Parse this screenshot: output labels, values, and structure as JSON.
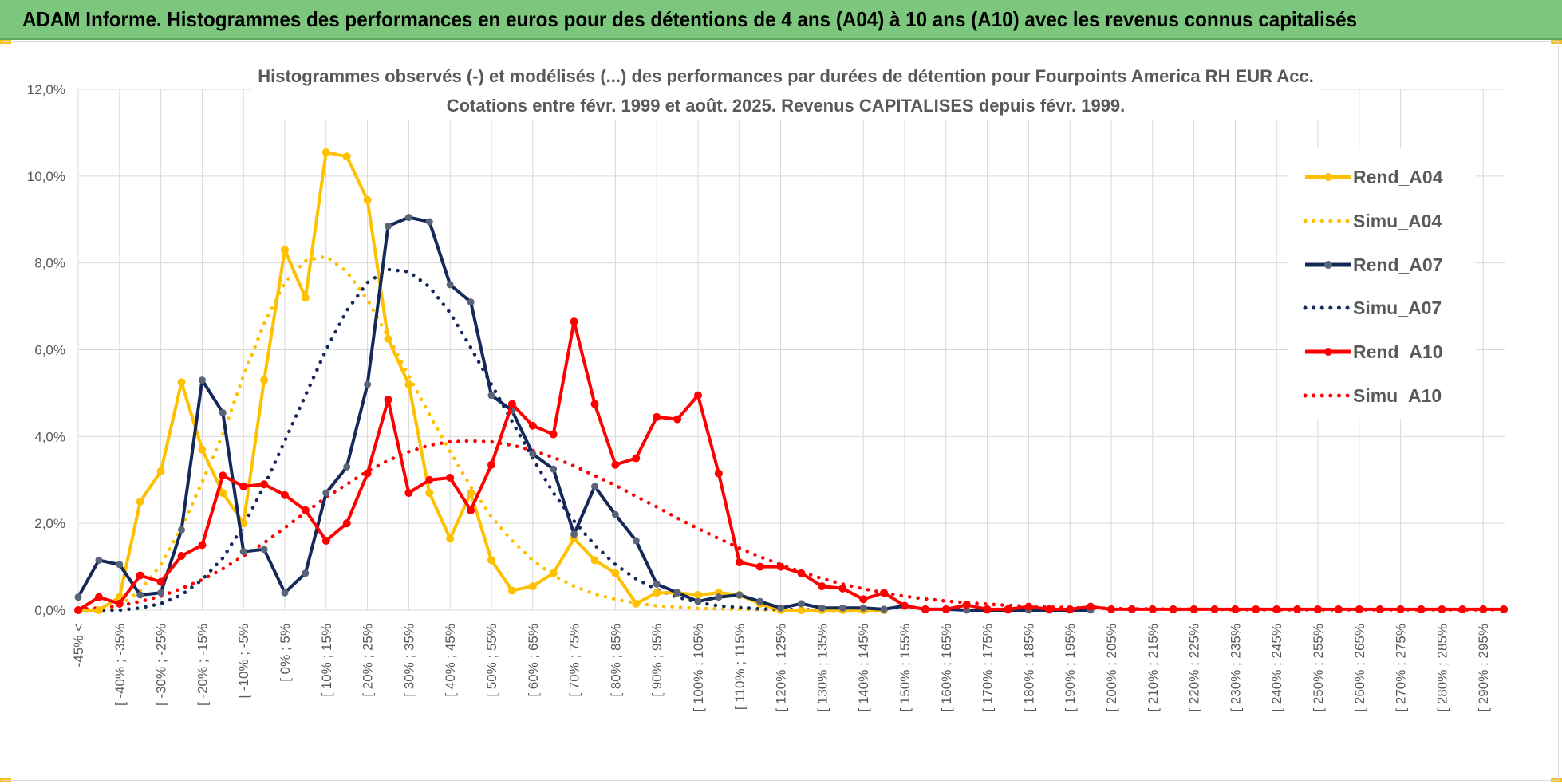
{
  "header": {
    "banner_title": "ADAM Informe. Histogrammes des performances en euros pour des détentions de 4 ans (A04) à 10 ans (A10) avec les revenus connus capitalisés",
    "banner_color": "#7dc67d",
    "accent_color": "#f4c20d"
  },
  "chart_data": {
    "type": "line",
    "title": "Histogrammes observés (-) et modélisés (...) des performances par durées de détention pour Fourpoints America RH EUR Acc.",
    "subtitle": "Cotations entre févr. 1999 et août. 2025. Revenus CAPITALISES depuis févr. 1999.",
    "xlabel": "",
    "ylabel": "",
    "ylim": [
      0,
      12
    ],
    "y_ticks": [
      "0,0%",
      "2,0%",
      "4,0%",
      "6,0%",
      "8,0%",
      "10,0%",
      "12,0%"
    ],
    "grid": true,
    "legend_position": "right",
    "x_tick_labels": [
      "-45% <",
      "[ -40% ; -35%",
      "[ -30% ; -25%",
      "[ -20% ; -15%",
      "[ -10% ; -5%",
      "[ 0% ; 5%",
      "[ 10% ; 15%",
      "[ 20% ; 25%",
      "[ 30% ; 35%",
      "[ 40% ; 45%",
      "[ 50% ; 55%",
      "[ 60% ; 65%",
      "[ 70% ; 75%",
      "[ 80% ; 85%",
      "[ 90% ; 95%",
      "[ 100% ; 105%",
      "[ 110% ; 115%",
      "[ 120% ; 125%",
      "[ 130% ; 135%",
      "[ 140% ; 145%",
      "[ 150% ; 155%",
      "[ 160% ; 165%",
      "[ 170% ; 175%",
      "[ 180% ; 185%",
      "[ 190% ; 195%",
      "[ 200% ; 205%",
      "[ 210% ; 215%",
      "[ 220% ; 225%",
      "[ 230% ; 235%",
      "[ 240% ; 245%",
      "[ 250% ; 255%",
      "[ 260% ; 265%",
      "[ 270% ; 275%",
      "[ 280% ; 285%",
      "[ 290% ; 295%"
    ],
    "series": [
      {
        "name": "Rend_A04",
        "color": "#ffc000",
        "style": "solid",
        "values": [
          0,
          0,
          0.3,
          2.5,
          3.2,
          5.25,
          3.7,
          2.7,
          2.0,
          5.3,
          8.3,
          7.2,
          10.55,
          10.45,
          9.45,
          6.25,
          5.2,
          2.7,
          1.65,
          2.7,
          1.15,
          0.45,
          0.55,
          0.85,
          1.65,
          1.15,
          0.85,
          0.15,
          0.4,
          0.4,
          0.35,
          0.4,
          0.35,
          0.15,
          0,
          0,
          0,
          0,
          0,
          0
        ]
      },
      {
        "name": "Simu_A04",
        "color": "#ffc000",
        "style": "dotted",
        "values": [
          0,
          0,
          0.1,
          0.45,
          1.05,
          1.9,
          2.95,
          4.05,
          5.4,
          6.6,
          7.55,
          8.05,
          8.15,
          7.8,
          7.15,
          6.3,
          5.4,
          4.5,
          3.65,
          2.85,
          2.15,
          1.6,
          1.15,
          0.8,
          0.55,
          0.37,
          0.25,
          0.16,
          0.1,
          0.07,
          0.04,
          0.03,
          0.02,
          0.01,
          0,
          0,
          0,
          0,
          0,
          0
        ]
      },
      {
        "name": "Rend_A07",
        "color": "#14285a",
        "style": "solid",
        "values": [
          0.3,
          1.15,
          1.05,
          0.35,
          0.4,
          1.85,
          5.3,
          4.55,
          1.35,
          1.4,
          0.4,
          0.85,
          2.7,
          3.3,
          5.2,
          8.85,
          9.05,
          8.95,
          7.5,
          7.1,
          4.95,
          4.6,
          3.6,
          3.25,
          1.75,
          2.85,
          2.2,
          1.6,
          0.6,
          0.4,
          0.2,
          0.3,
          0.35,
          0.2,
          0.05,
          0.15,
          0.05,
          0.05,
          0.05,
          0.02,
          0.1,
          0.02,
          0.02,
          0,
          0,
          0,
          0,
          0,
          0,
          0
        ]
      },
      {
        "name": "Simu_A07",
        "color": "#14285a",
        "style": "dotted",
        "values": [
          0,
          0,
          0,
          0.05,
          0.15,
          0.35,
          0.7,
          1.2,
          1.95,
          2.85,
          3.9,
          4.95,
          6.0,
          6.9,
          7.55,
          7.85,
          7.8,
          7.45,
          6.85,
          6.05,
          5.2,
          4.35,
          3.5,
          2.7,
          2.05,
          1.5,
          1.05,
          0.72,
          0.48,
          0.3,
          0.18,
          0.1,
          0.06,
          0.03,
          0.02,
          0.01,
          0,
          0,
          0,
          0
        ]
      },
      {
        "name": "Rend_A10",
        "color": "#ff0000",
        "style": "solid",
        "values": [
          0,
          0.3,
          0.15,
          0.8,
          0.65,
          1.25,
          1.5,
          3.1,
          2.85,
          2.9,
          2.65,
          2.3,
          1.6,
          2.0,
          3.15,
          4.85,
          2.7,
          3.0,
          3.05,
          2.3,
          3.35,
          4.75,
          4.25,
          4.05,
          6.65,
          4.75,
          3.35,
          3.5,
          4.45,
          4.4,
          4.95,
          3.15,
          1.1,
          1.0,
          1.0,
          0.85,
          0.55,
          0.5,
          0.25,
          0.4,
          0.1,
          0.02,
          0.02,
          0.12,
          0.02,
          0.02,
          0.08,
          0.02,
          0.02,
          0.08,
          0.02,
          0.02,
          0.02,
          0.02,
          0.02,
          0.02,
          0.02,
          0.02,
          0.02,
          0.02,
          0.02,
          0.02,
          0.02,
          0.02,
          0.02,
          0.02,
          0.02,
          0.02,
          0.02,
          0.02
        ]
      },
      {
        "name": "Simu_A10",
        "color": "#ff0000",
        "style": "dotted",
        "values": [
          0.02,
          0.05,
          0.1,
          0.2,
          0.32,
          0.5,
          0.7,
          0.95,
          1.25,
          1.55,
          1.9,
          2.25,
          2.6,
          2.9,
          3.2,
          3.45,
          3.65,
          3.8,
          3.88,
          3.9,
          3.88,
          3.8,
          3.68,
          3.52,
          3.32,
          3.1,
          2.88,
          2.62,
          2.38,
          2.12,
          1.88,
          1.65,
          1.43,
          1.23,
          1.05,
          0.88,
          0.73,
          0.6,
          0.49,
          0.4,
          0.32,
          0.26,
          0.21,
          0.17,
          0.14,
          0.11,
          0.09,
          0.07,
          0.06,
          0.05,
          0.04,
          0.03,
          0.03,
          0.02,
          0.02,
          0.02,
          0.01,
          0.01,
          0.01,
          0.01,
          0.01,
          0.01,
          0.01,
          0.01,
          0.01,
          0.01,
          0.01,
          0.01,
          0.01,
          0.01
        ]
      }
    ]
  }
}
